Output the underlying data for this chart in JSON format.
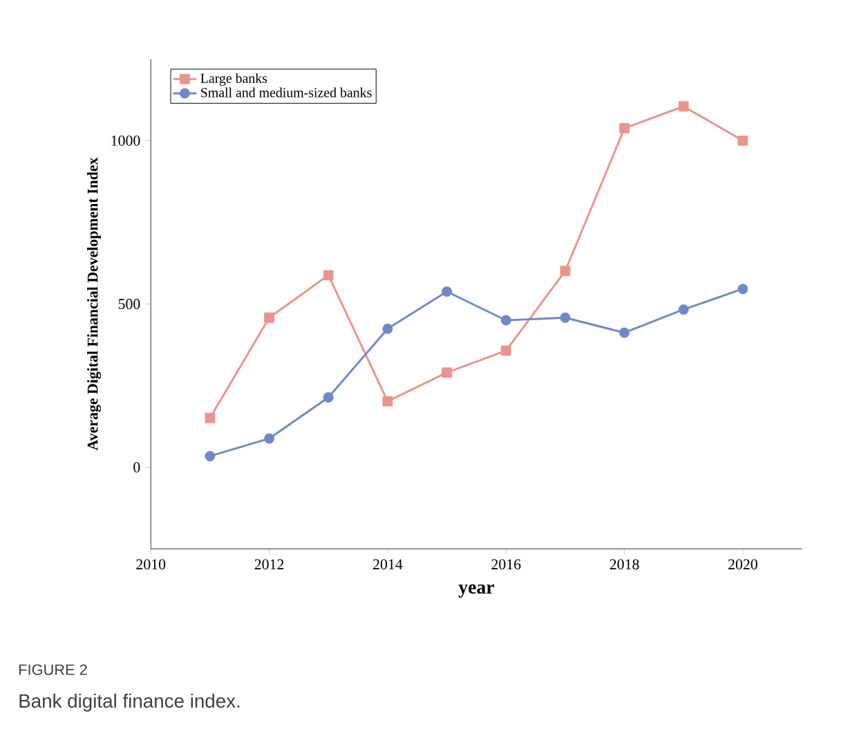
{
  "chart_data": {
    "type": "line",
    "xlabel": "year",
    "ylabel": "Average Digital Financial Development Index",
    "x": [
      2011,
      2012,
      2013,
      2014,
      2015,
      2016,
      2017,
      2018,
      2019,
      2020
    ],
    "series": [
      {
        "name": "Large banks",
        "color": "#e8958f",
        "marker": "square",
        "values": [
          151,
          458,
          588,
          202,
          290,
          357,
          601,
          1038,
          1105,
          1000
        ]
      },
      {
        "name": "Small and medium-sized banks",
        "color": "#7088c4",
        "marker": "circle",
        "values": [
          34,
          88,
          214,
          424,
          538,
          450,
          458,
          412,
          483,
          546
        ]
      }
    ],
    "xlim": [
      2010,
      2021
    ],
    "ylim": [
      -250,
      1250
    ],
    "xticks": [
      2010,
      2012,
      2014,
      2016,
      2018,
      2020
    ],
    "yticks": [
      0,
      500,
      1000
    ],
    "grid": false,
    "legend": "top left",
    "line_style": "solid",
    "annotations": [
      "FIGURE 2",
      "Bank digital finance index."
    ]
  }
}
